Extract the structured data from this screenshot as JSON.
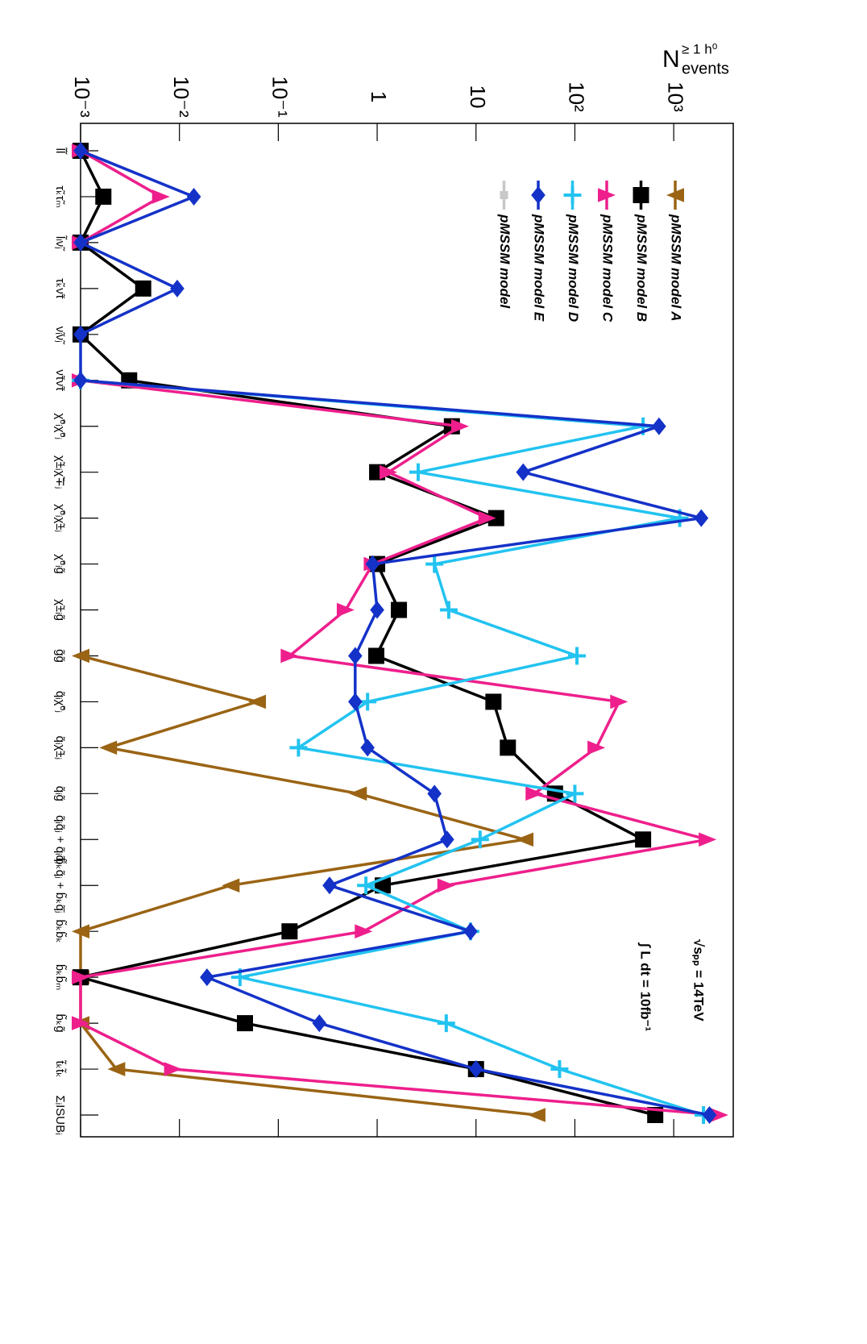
{
  "chart_data": {
    "type": "line",
    "orientation": "rotated",
    "ylabel": "N",
    "ylabel_sup": "≥ 1 h⁰",
    "ylabel_sub": "events",
    "annotations": [
      "√sₚₚ = 14TeV",
      "∫ L dt = 10fb⁻¹"
    ],
    "log_scale": true,
    "ylim": [
      0.001,
      4000
    ],
    "yticks": [
      {
        "value": 0.001,
        "label": "10⁻³"
      },
      {
        "value": 0.01,
        "label": "10⁻²"
      },
      {
        "value": 0.1,
        "label": "10⁻¹"
      },
      1,
      10,
      {
        "value": 100,
        "label": "10²"
      },
      {
        "value": 1000,
        "label": "10³"
      }
    ],
    "categories": [
      "l̃l̃",
      "τ̃ₖτ̃ₘ",
      "l̃ₗν̃ⱼ",
      "τ̃ₖν̃τ",
      "ν̃ᵢν̃ⱼ",
      "ν̃τν̃τ",
      "χ̃⁰ᵢχ̃⁰ⱼ",
      "χ̃±ᵢχ̃∓ⱼ",
      "χ̃⁰ᵢχ̃±ⱼ",
      "χ̃⁰ᵢg̃",
      "χ̃±ᵢg̃",
      "g̃g̃",
      "q̃ᵢχ̃⁰ⱼ",
      "q̃ᵢχ̃±ⱼ",
      "q̃ᵢg̃",
      "q̃ᵢq̃ⱼ + q̃ᵢq̃̄ⱼ",
      "b̃ₖq̃ⱼ + b̃ₖq̃̄ⱼ",
      "b̃ₖb̃ₖ",
      "b̃ₖb̃ₘ",
      "b̃ₖg̃",
      "t̃ₖt̃ₖ",
      "ΣᵢISUBᵢ"
    ],
    "background_series": {
      "name": "pMSSM model",
      "color": "#c8c8c8"
    },
    "series": [
      {
        "name": "pMSSM model A",
        "color": "#9a6414",
        "marker": "triangle-left",
        "values": [
          null,
          null,
          null,
          null,
          null,
          null,
          null,
          null,
          null,
          null,
          null,
          0.001,
          0.061,
          0.0019,
          0.64,
          31,
          0.033,
          0.001,
          0.001,
          0.001,
          0.0023,
          41
        ]
      },
      {
        "name": "pMSSM model B",
        "color": "#000000",
        "marker": "square",
        "values": [
          0.001,
          0.0017,
          0.001,
          0.0043,
          0.001,
          0.0031,
          5.7,
          1.0,
          16,
          1.0,
          1.66,
          0.98,
          15,
          21,
          63,
          490,
          1.14,
          0.13,
          0.001,
          0.046,
          10,
          650
        ]
      },
      {
        "name": "pMSSM model C",
        "color": "#ee1f8c",
        "marker": "triangle-right",
        "values": [
          0.001,
          0.0065,
          0.001,
          null,
          null,
          0.001,
          6.9,
          1.3,
          13,
          0.9,
          0.48,
          0.13,
          280,
          165,
          39,
          2200,
          5,
          0.73,
          0.001,
          0.001,
          0.0086,
          2900
        ]
      },
      {
        "name": "pMSSM model D",
        "color": "#22c3f0",
        "marker": "cross",
        "values": [
          null,
          null,
          null,
          null,
          null,
          0.001,
          490,
          2.6,
          1150,
          3.8,
          5.3,
          105,
          0.8,
          0.16,
          100,
          11,
          0.77,
          8.8,
          0.041,
          5,
          70,
          2000
        ]
      },
      {
        "name": "pMSSM model E",
        "color": "#1432c8",
        "marker": "diamond",
        "values": [
          0.001,
          0.014,
          0.001,
          0.0095,
          0.001,
          0.001,
          710,
          30,
          1900,
          0.9,
          1.0,
          0.6,
          0.6,
          0.8,
          3.8,
          5.1,
          0.33,
          8.8,
          0.019,
          0.26,
          10,
          2300
        ]
      }
    ]
  }
}
